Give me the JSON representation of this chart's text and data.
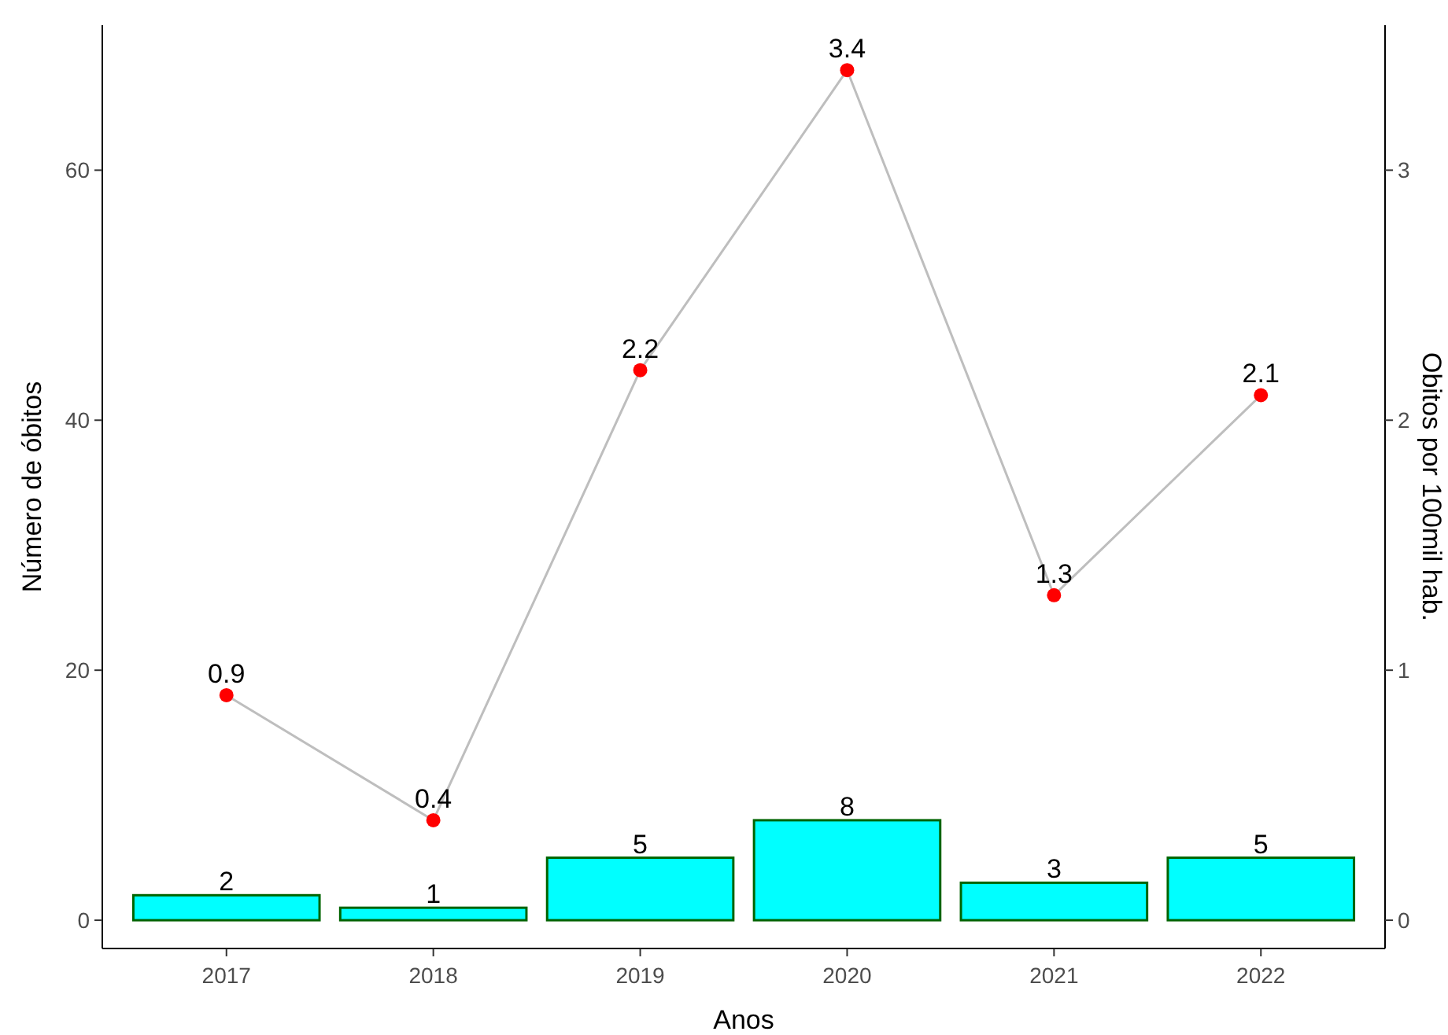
{
  "chart_data": {
    "type": "bar",
    "xlabel": "Anos",
    "ylabel": "Número de óbitos",
    "y2label": "Obitos por 100mil hab.",
    "categories": [
      "2017",
      "2018",
      "2019",
      "2020",
      "2021",
      "2022"
    ],
    "series": [
      {
        "color": "#00ffff",
        "values": [
          2,
          1,
          5,
          8,
          3,
          5
        ],
        "value_labels": [
          "2",
          "1",
          "5",
          "8",
          "3",
          "5"
        ]
      },
      {
        "type": "line",
        "axis": "y2",
        "color": "#ff0000",
        "values": [
          0.9,
          0.4,
          2.2,
          3.4,
          1.3,
          2.1
        ],
        "value_labels": [
          "0.9",
          "0.4",
          "2.2",
          "3.4",
          "1.3",
          "2.1"
        ]
      }
    ],
    "ylim": [
      -2.26,
      71.6
    ],
    "yticks": [
      0,
      20,
      40,
      60
    ],
    "y2lim": [
      -0.113,
      3.58
    ],
    "y2ticks": [
      0,
      1,
      2,
      3
    ],
    "marker": "circle",
    "grid": false
  }
}
